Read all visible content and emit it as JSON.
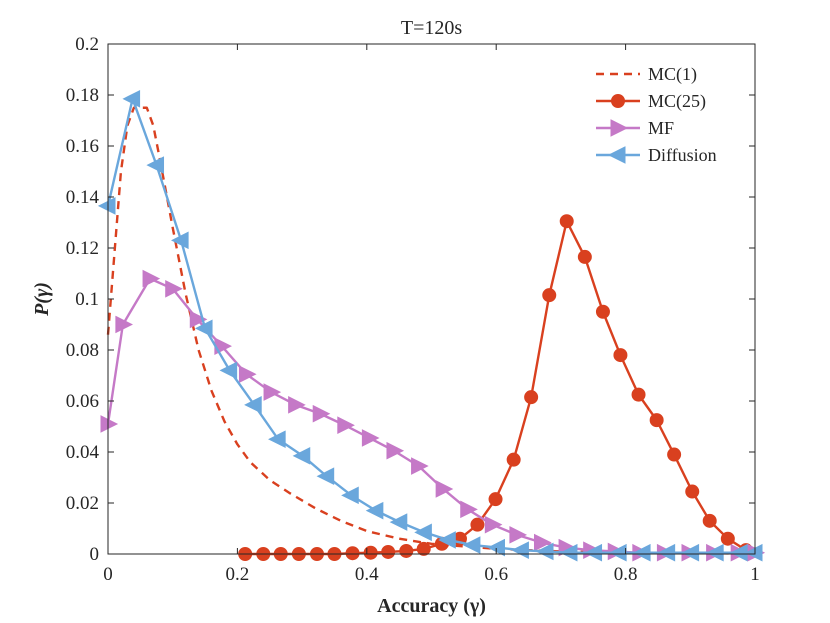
{
  "chart_data": {
    "type": "line",
    "title": "T=120s",
    "xlabel": "Accuracy (γ)",
    "ylabel": "P(γ)",
    "xlim": [
      0,
      1
    ],
    "ylim": [
      0,
      0.2
    ],
    "xticks": [
      0,
      0.2,
      0.4,
      0.6,
      0.8,
      1
    ],
    "xtick_labels": [
      "0",
      "0.2",
      "0.4",
      "0.6",
      "0.8",
      "1"
    ],
    "yticks": [
      0,
      0.02,
      0.04,
      0.06,
      0.08,
      0.1,
      0.12,
      0.14,
      0.16,
      0.18,
      0.2
    ],
    "ytick_labels": [
      "0",
      "0.02",
      "0.04",
      "0.06",
      "0.08",
      "0.1",
      "0.12",
      "0.14",
      "0.16",
      "0.18",
      "0.2"
    ],
    "grid": false,
    "legend_position": "top-right",
    "series": [
      {
        "name": "MC(1)",
        "color": "#d9401f",
        "style": "dashed",
        "marker": "none",
        "x": [
          0,
          0.01,
          0.02,
          0.03,
          0.04,
          0.05,
          0.06,
          0.07,
          0.08,
          0.1,
          0.12,
          0.14,
          0.16,
          0.18,
          0.2,
          0.22,
          0.25,
          0.28,
          0.32,
          0.36,
          0.4,
          0.45,
          0.5,
          0.55,
          0.6,
          0.65,
          0.7,
          0.8,
          0.9,
          1.0
        ],
        "y": [
          0.086,
          0.118,
          0.15,
          0.168,
          0.175,
          0.175,
          0.175,
          0.168,
          0.155,
          0.128,
          0.102,
          0.08,
          0.064,
          0.052,
          0.043,
          0.036,
          0.029,
          0.024,
          0.018,
          0.013,
          0.009,
          0.006,
          0.004,
          0.003,
          0.002,
          0.0015,
          0.001,
          0.0005,
          0.0003,
          0.0002
        ]
      },
      {
        "name": "MC(25)",
        "color": "#d9401f",
        "style": "solid",
        "marker": "circle",
        "x": [
          0.212,
          0.24,
          0.267,
          0.295,
          0.323,
          0.35,
          0.378,
          0.406,
          0.433,
          0.461,
          0.488,
          0.516,
          0.544,
          0.571,
          0.599,
          0.627,
          0.654,
          0.682,
          0.709,
          0.737,
          0.765,
          0.792,
          0.82,
          0.848,
          0.875,
          0.903,
          0.93,
          0.958,
          0.986
        ],
        "y": [
          0,
          0,
          0,
          0,
          0,
          0,
          0.0003,
          0.0005,
          0.0008,
          0.0012,
          0.002,
          0.004,
          0.006,
          0.0115,
          0.0215,
          0.037,
          0.0615,
          0.1015,
          0.1305,
          0.1165,
          0.095,
          0.078,
          0.0625,
          0.0525,
          0.039,
          0.0245,
          0.013,
          0.006,
          0.0015
        ]
      },
      {
        "name": "MF",
        "color": "#c579c7",
        "style": "solid",
        "marker": "triangle-right",
        "x": [
          0,
          0.023,
          0.065,
          0.1,
          0.138,
          0.176,
          0.214,
          0.252,
          0.29,
          0.328,
          0.366,
          0.404,
          0.442,
          0.48,
          0.518,
          0.556,
          0.594,
          0.632,
          0.67,
          0.708,
          0.746,
          0.784,
          0.822,
          0.86,
          0.898,
          0.936,
          0.974,
          1.0
        ],
        "y": [
          0.051,
          0.09,
          0.108,
          0.104,
          0.092,
          0.0815,
          0.0705,
          0.0635,
          0.0585,
          0.055,
          0.0505,
          0.0455,
          0.0405,
          0.0345,
          0.0255,
          0.0175,
          0.0115,
          0.0075,
          0.0045,
          0.0025,
          0.0015,
          0.001,
          0.0005,
          0.0005,
          0.0005,
          0.0005,
          0.0005,
          0.0005
        ]
      },
      {
        "name": "Diffusion",
        "color": "#6aa7dc",
        "style": "solid",
        "marker": "triangle-left",
        "x": [
          0,
          0.038,
          0.075,
          0.113,
          0.15,
          0.188,
          0.226,
          0.263,
          0.301,
          0.338,
          0.376,
          0.414,
          0.451,
          0.489,
          0.526,
          0.564,
          0.602,
          0.639,
          0.677,
          0.714,
          0.752,
          0.79,
          0.827,
          0.865,
          0.902,
          0.94,
          0.977,
          1.0
        ],
        "y": [
          0.1365,
          0.1785,
          0.1525,
          0.123,
          0.0885,
          0.072,
          0.0585,
          0.045,
          0.0385,
          0.0305,
          0.023,
          0.017,
          0.0125,
          0.0085,
          0.0055,
          0.0035,
          0.0025,
          0.0015,
          0.001,
          0.0005,
          0.0005,
          0.0005,
          0.0005,
          0.0005,
          0.0005,
          0.0005,
          0.0005,
          0.0005
        ]
      }
    ]
  }
}
